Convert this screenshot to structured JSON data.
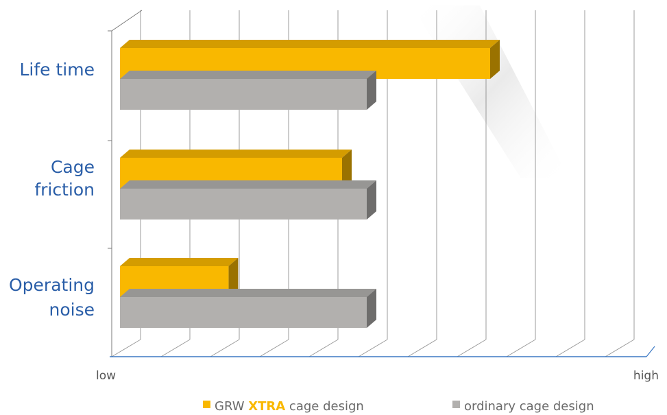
{
  "chart_data": {
    "type": "bar",
    "orientation": "horizontal",
    "categories": [
      "Life time",
      "Cage friction",
      "Operating noise"
    ],
    "category_lines": [
      [
        "Life time"
      ],
      [
        "Cage",
        "friction"
      ],
      [
        "Operating",
        "noise"
      ]
    ],
    "series": [
      {
        "name": "GRW XTRA cage design",
        "color": "#f9b800",
        "values": [
          7.5,
          4.5,
          2.2
        ]
      },
      {
        "name": "ordinary cage design",
        "color": "#b2b0ae",
        "values": [
          5.0,
          5.0,
          5.0
        ]
      }
    ],
    "xlim": [
      0,
      10
    ],
    "x_min_label": "low",
    "x_max_label": "high",
    "grid": true,
    "legend_position": "bottom",
    "legend": {
      "xtra": {
        "prefix": "GRW ",
        "bold": "XTRA",
        "suffix": " cage design",
        "bold_color": "#f9b800"
      },
      "ordinary": {
        "text": "ordinary cage design"
      }
    },
    "colors": {
      "label": "#2a5ea8",
      "axis_line": "#3b78c4",
      "grid": "#7a7a7a"
    }
  }
}
